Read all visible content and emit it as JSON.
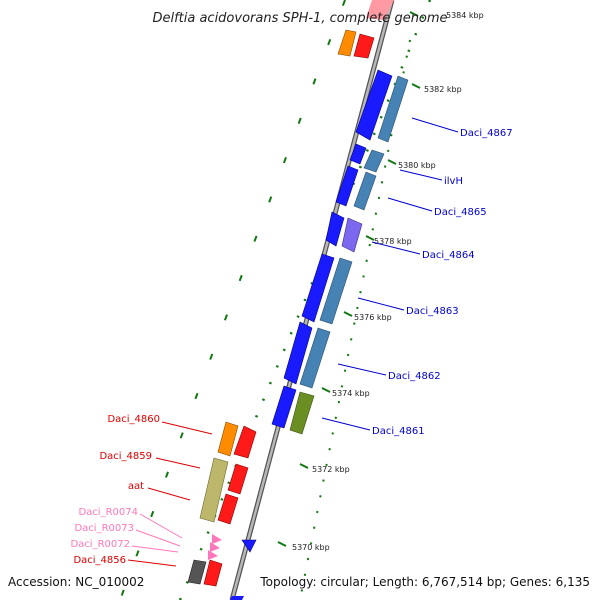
{
  "title": "Delftia acidovorans SPH-1, complete genome",
  "footer": {
    "accession": "Accession: NC_010002",
    "summary": "Topology: circular; Length: 6,767,514 bp; Genes: 6,135"
  },
  "colors": {
    "backbone": "#8c8c8c",
    "ticks": "#117711",
    "forward_label": "#0000cc",
    "reverse_label": "#dd0000",
    "rna_label": "#ff77bb"
  },
  "ticks": [
    {
      "label": "5384 kbp"
    },
    {
      "label": "5382 kbp"
    },
    {
      "label": "5380 kbp"
    },
    {
      "label": "5378 kbp"
    },
    {
      "label": "5376 kbp"
    },
    {
      "label": "5374 kbp"
    },
    {
      "label": "5372 kbp"
    },
    {
      "label": "5370 kbp"
    }
  ],
  "right_labels": [
    {
      "text": "Daci_4867"
    },
    {
      "text": "ilvH"
    },
    {
      "text": "Daci_4865"
    },
    {
      "text": "Daci_4864"
    },
    {
      "text": "Daci_4863"
    },
    {
      "text": "Daci_4862"
    },
    {
      "text": "Daci_4861"
    }
  ],
  "left_labels": [
    {
      "text": "Daci_4860"
    },
    {
      "text": "Daci_4859"
    },
    {
      "text": "aat"
    },
    {
      "text": "Daci_R0074"
    },
    {
      "text": "Daci_R0073"
    },
    {
      "text": "Daci_R0072"
    },
    {
      "text": "Daci_4856"
    }
  ]
}
